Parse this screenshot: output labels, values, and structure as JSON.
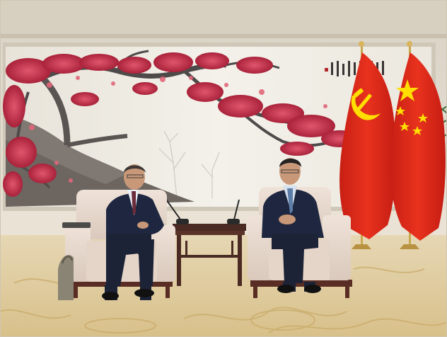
{
  "scene": {
    "description_colors": {
      "wall": "#e9e4da",
      "mural_bg": "#efece3",
      "blossom": "#c8324a",
      "branch": "#4e4a4a",
      "flag_red": "#de2910",
      "flag_gold": "#ffde00",
      "carpet": "#e3cf9f",
      "chair": "#e8d9cf",
      "suit": "#1f2740"
    },
    "calligraphy": "",
    "seal_text": ""
  }
}
